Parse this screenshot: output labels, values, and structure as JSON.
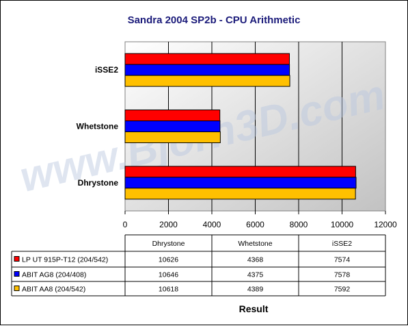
{
  "chart_data": {
    "type": "bar",
    "orientation": "horizontal",
    "title": "Sandra 2004 SP2b - CPU Arithmetic",
    "xlabel": "Result",
    "ylabel": "",
    "categories": [
      "Dhrystone",
      "Whetstone",
      "iSSE2"
    ],
    "series": [
      {
        "name": "LP UT 915P-T12 (204/542)",
        "color": "#ff0000",
        "values": [
          10626,
          4368,
          7574
        ]
      },
      {
        "name": "ABIT AG8 (204/408)",
        "color": "#0000ff",
        "values": [
          10646,
          4375,
          7578
        ]
      },
      {
        "name": "ABIT AA8 (204/542)",
        "color": "#ffc000",
        "values": [
          10618,
          4389,
          7592
        ]
      }
    ],
    "xlim": [
      0,
      12000
    ],
    "xticks": [
      0,
      2000,
      4000,
      6000,
      8000,
      10000,
      12000
    ],
    "grid": true,
    "data_table": true,
    "watermark": "www.Bjorn3D.com"
  }
}
